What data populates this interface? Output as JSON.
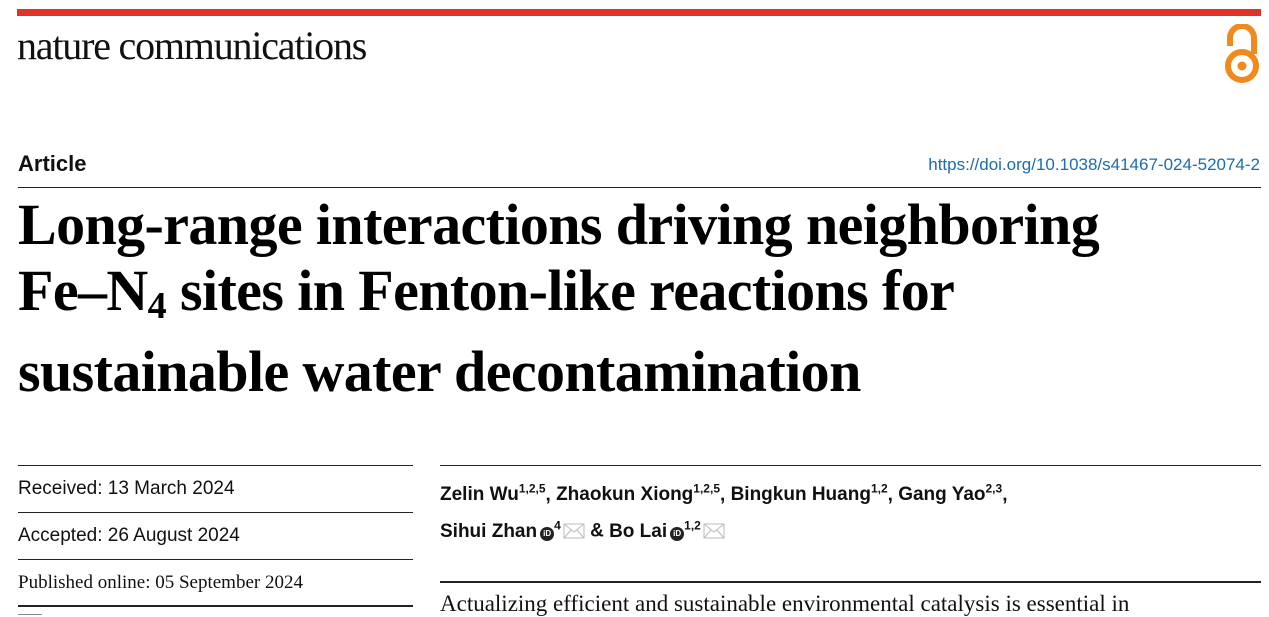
{
  "header": {
    "journal": "nature communications",
    "accent_color": "#e0322a",
    "open_access_icon": "open-access-lock-icon",
    "open_access_color": "#f08a1c"
  },
  "article": {
    "type": "Article",
    "doi": "https://doi.org/10.1038/s41467-024-52074-2",
    "title_line1": "Long-range interactions driving neighboring",
    "title_line2_pre": "Fe–N",
    "title_line2_sub": "4",
    "title_line2_post": " sites in Fenton-like reactions for",
    "title_line3": "sustainable water decontamination"
  },
  "dates": {
    "received": "Received: 13 March 2024",
    "accepted": "Accepted: 26 August 2024",
    "published": "Published online: 05 September 2024"
  },
  "authors": [
    {
      "name": "Zelin Wu",
      "aff": "1,2,5"
    },
    {
      "name": "Zhaokun Xiong",
      "aff": "1,2,5"
    },
    {
      "name": "Bingkun Huang",
      "aff": "1,2"
    },
    {
      "name": "Gang Yao",
      "aff": "2,3"
    },
    {
      "name": "Sihui Zhan",
      "aff": "4"
    },
    {
      "name": "Bo Lai",
      "aff": "1,2"
    }
  ],
  "orcid_label": "iD",
  "abstract_start": "Actualizing efficient and sustainable environmental catalysis is essential in"
}
